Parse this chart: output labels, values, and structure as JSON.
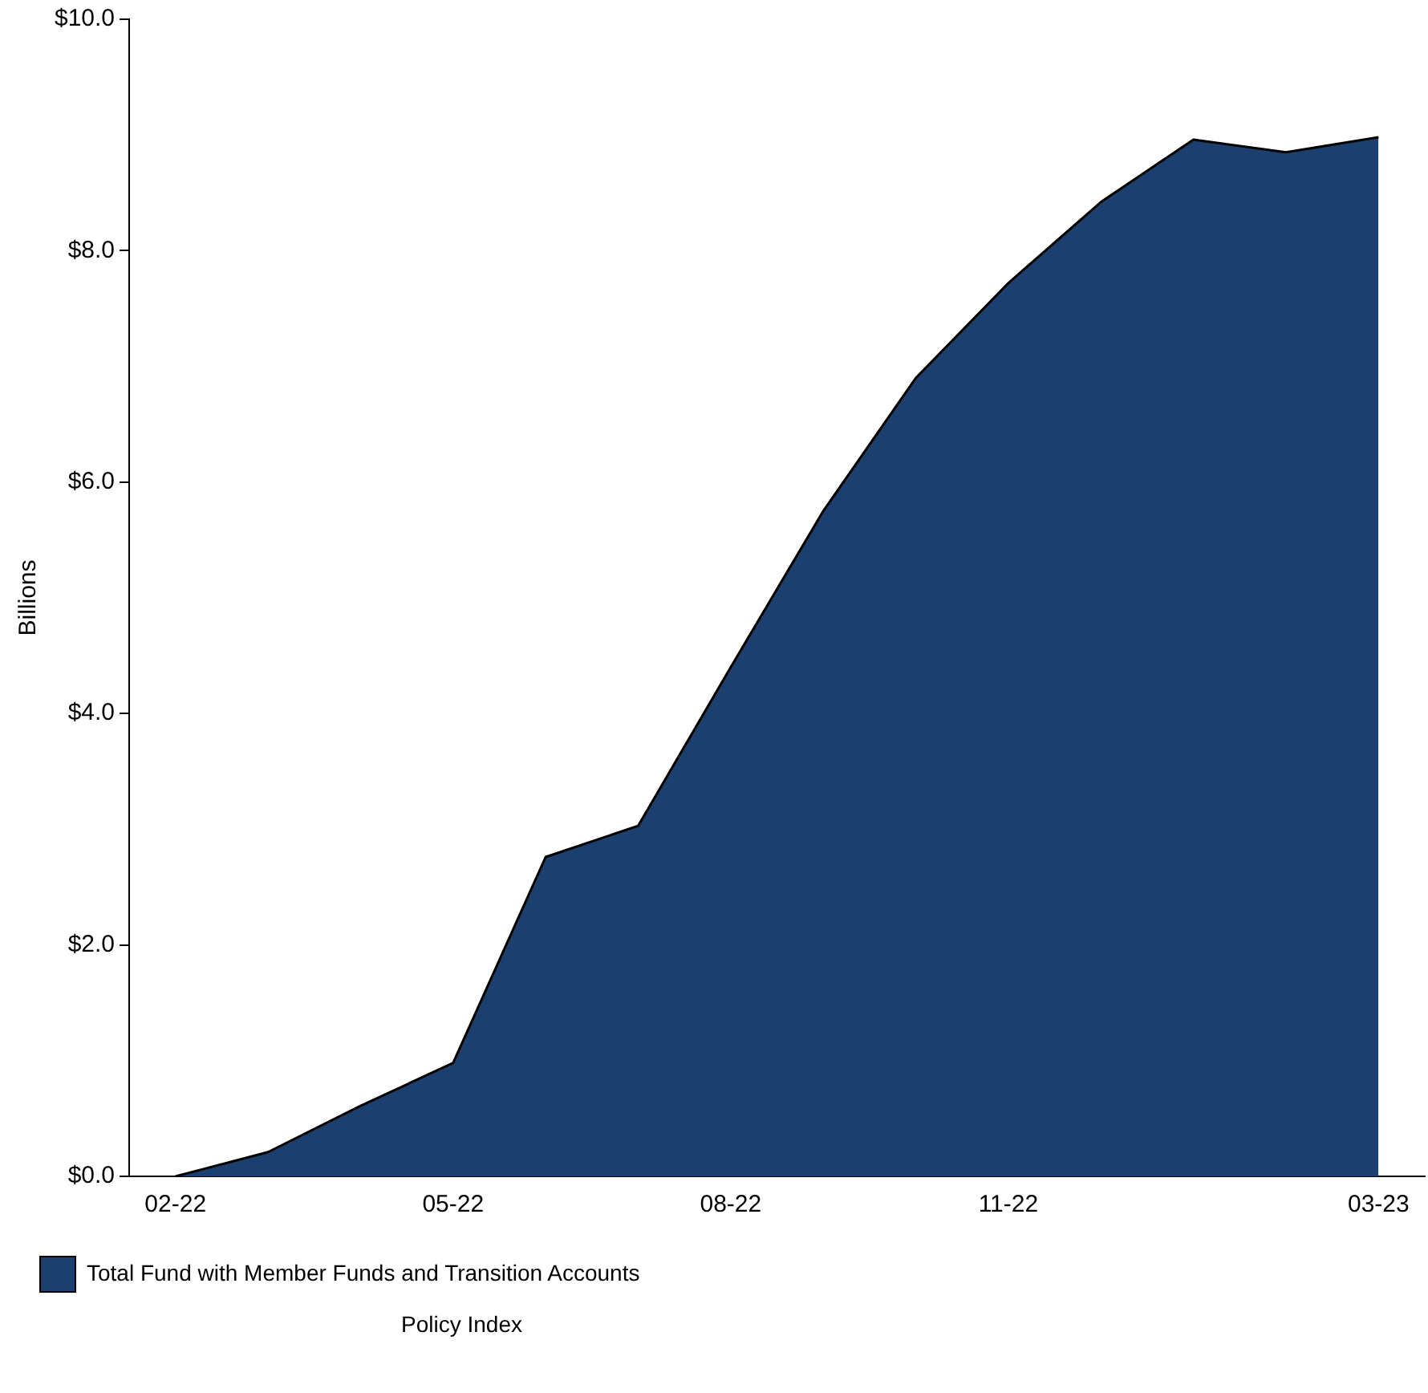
{
  "chart_data": {
    "type": "area",
    "ylabel": "Billions",
    "categories": [
      "02-22",
      null,
      null,
      "05-22",
      null,
      null,
      "08-22",
      null,
      null,
      "11-22",
      null,
      null,
      null,
      "03-23"
    ],
    "series": [
      {
        "name": "Total Fund with Member Funds and Transition Accounts",
        "color": "#1b3f6e",
        "values": [
          0.0,
          0.21,
          0.61,
          0.98,
          2.76,
          3.03,
          4.4,
          5.75,
          6.9,
          7.72,
          8.42,
          8.96,
          8.85,
          8.98
        ]
      }
    ],
    "ylim": [
      0,
      10
    ],
    "yticks": [
      {
        "value": 0,
        "label": "$0.0"
      },
      {
        "value": 2,
        "label": "$2.0"
      },
      {
        "value": 4,
        "label": "$4.0"
      },
      {
        "value": 6,
        "label": "$6.0"
      },
      {
        "value": 8,
        "label": "$8.0"
      },
      {
        "value": 10,
        "label": "$10.0"
      }
    ],
    "grid": false,
    "legend": "bottom",
    "annotations": [
      "Policy Index"
    ]
  }
}
